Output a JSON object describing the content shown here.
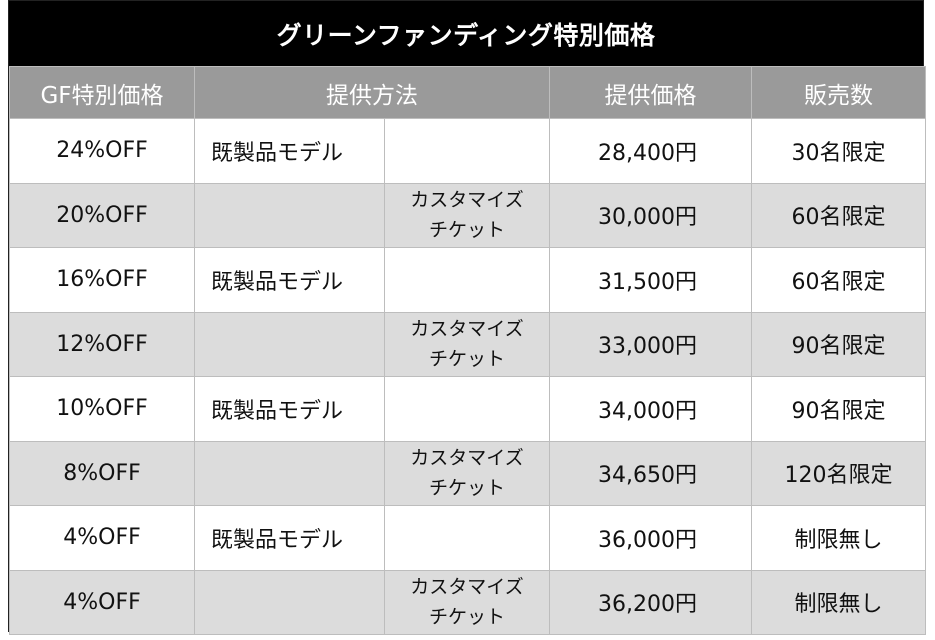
{
  "title": "グリーンファンディング特別価格",
  "headers": {
    "discount": "GF特別価格",
    "method": "提供方法",
    "price": "提供価格",
    "sales": "販売数"
  },
  "rows": [
    {
      "discount": "24%OFF",
      "method_model": "既製品モデル",
      "method_ticket_1": "",
      "method_ticket_2": "",
      "price": "28,400円",
      "sales": "30名限定",
      "shade": "light"
    },
    {
      "discount": "20%OFF",
      "method_model": "",
      "method_ticket_1": "カスタマイズ",
      "method_ticket_2": "チケット",
      "price": "30,000円",
      "sales": "60名限定",
      "shade": "dark"
    },
    {
      "discount": "16%OFF",
      "method_model": "既製品モデル",
      "method_ticket_1": "",
      "method_ticket_2": "",
      "price": "31,500円",
      "sales": "60名限定",
      "shade": "light"
    },
    {
      "discount": "12%OFF",
      "method_model": "",
      "method_ticket_1": "カスタマイズ",
      "method_ticket_2": "チケット",
      "price": "33,000円",
      "sales": "90名限定",
      "shade": "dark"
    },
    {
      "discount": "10%OFF",
      "method_model": "既製品モデル",
      "method_ticket_1": "",
      "method_ticket_2": "",
      "price": "34,000円",
      "sales": "90名限定",
      "shade": "light"
    },
    {
      "discount": "8%OFF",
      "method_model": "",
      "method_ticket_1": "カスタマイズ",
      "method_ticket_2": "チケット",
      "price": "34,650円",
      "sales": "120名限定",
      "shade": "dark"
    },
    {
      "discount": "4%OFF",
      "method_model": "既製品モデル",
      "method_ticket_1": "",
      "method_ticket_2": "",
      "price": "36,000円",
      "sales": "制限無し",
      "shade": "light"
    },
    {
      "discount": "4%OFF",
      "method_model": "",
      "method_ticket_1": "カスタマイズ",
      "method_ticket_2": "チケット",
      "price": "36,200円",
      "sales": "制限無し",
      "shade": "dark"
    }
  ],
  "colors": {
    "title_bg": "#000000",
    "header_bg": "#9a9a9a",
    "row_light": "#ffffff",
    "row_dark": "#dcdcdc"
  }
}
